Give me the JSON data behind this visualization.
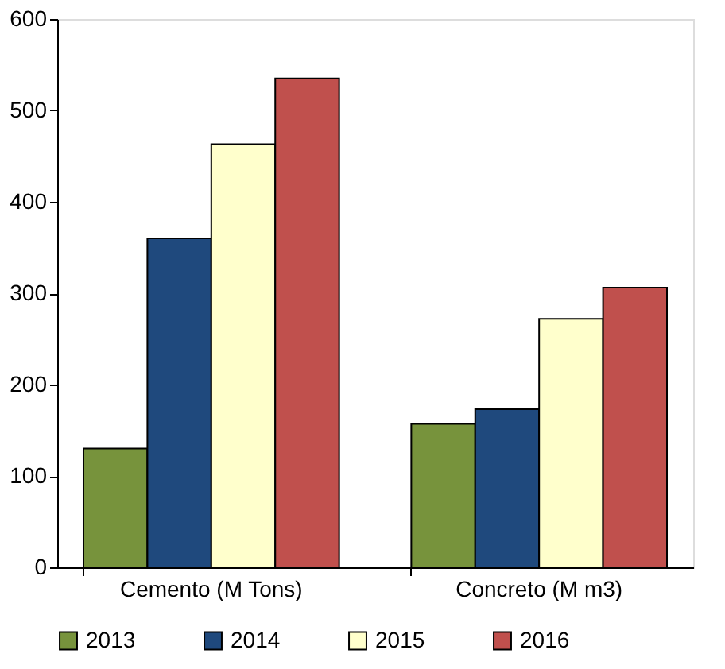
{
  "chart_data": {
    "type": "bar",
    "categories": [
      "Cemento (M Tons)",
      "Concreto (M m3)"
    ],
    "series": [
      {
        "name": "2013",
        "color": "#77933c",
        "values": [
          130,
          157
        ]
      },
      {
        "name": "2014",
        "color": "#1f497d",
        "values": [
          360,
          173
        ]
      },
      {
        "name": "2015",
        "color": "#ffffcc",
        "values": [
          463,
          272
        ]
      },
      {
        "name": "2016",
        "color": "#c0504d",
        "values": [
          535,
          306
        ]
      }
    ],
    "ylim": [
      0,
      600
    ],
    "yticks": [
      0,
      100,
      200,
      300,
      400,
      500,
      600
    ],
    "grid": false,
    "legend": "bottom"
  }
}
